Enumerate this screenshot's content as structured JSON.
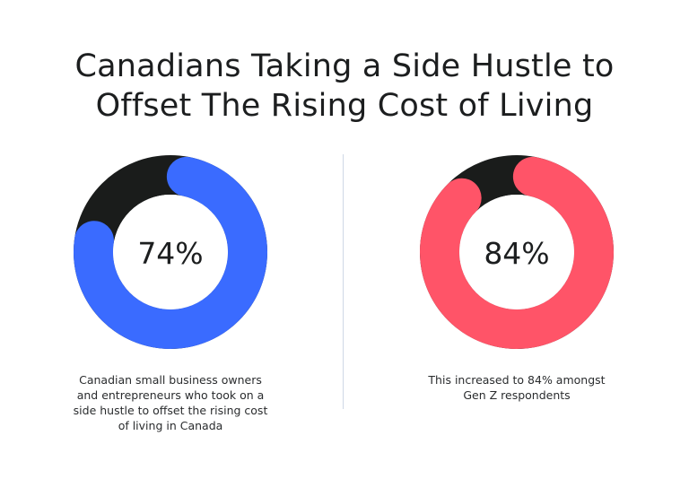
{
  "title_line1": "Canadians Taking a Side Hustle to",
  "title_line2": "Offset The Rising Cost of Living",
  "chart_data": [
    {
      "type": "pie",
      "variant": "donut",
      "value": 74,
      "label": "74%",
      "caption_lines": [
        "Canadian small business owners",
        "and entrepreneurs who took on a",
        "side hustle to offset the rising cost",
        "of living in Canada"
      ],
      "colors": {
        "fill": "#3a6bff",
        "remainder": "#1a1c1b"
      }
    },
    {
      "type": "pie",
      "variant": "donut",
      "value": 84,
      "label": "84%",
      "caption_lines": [
        "This increased to 84% amongst",
        "Gen Z respondents"
      ],
      "colors": {
        "fill": "#ff5468",
        "remainder": "#1a1c1b"
      }
    }
  ],
  "colors": {
    "divider": "#cfd8e6",
    "text": "#1c1e1f"
  }
}
